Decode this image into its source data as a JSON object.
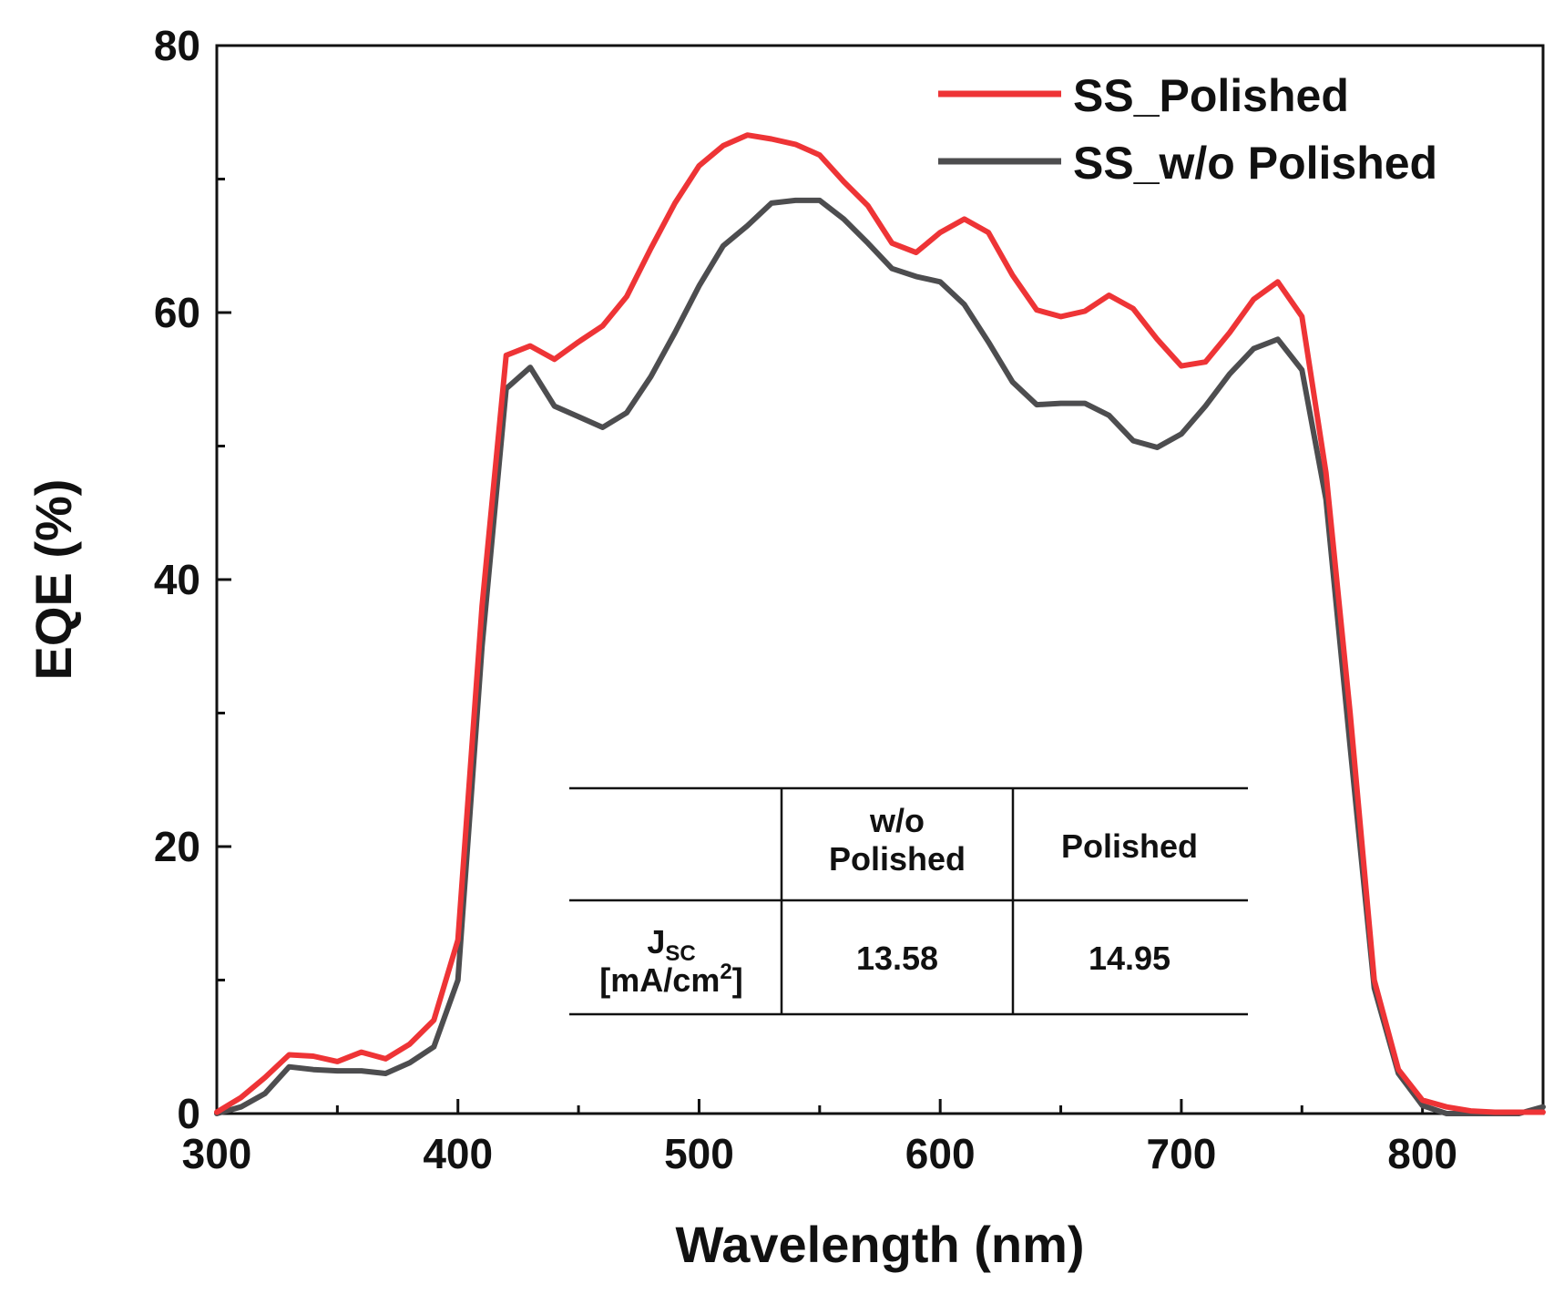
{
  "chart_data": {
    "type": "line",
    "xlabel": "Wavelength (nm)",
    "ylabel": "EQE (%)",
    "xlim": [
      300,
      850
    ],
    "ylim": [
      0,
      80
    ],
    "x_ticks": [
      300,
      400,
      500,
      600,
      700,
      800
    ],
    "y_ticks": [
      0,
      20,
      40,
      60,
      80
    ],
    "legend_position": "top-right",
    "x": [
      300,
      310,
      320,
      330,
      340,
      350,
      360,
      370,
      380,
      390,
      400,
      410,
      420,
      430,
      440,
      450,
      460,
      470,
      480,
      490,
      500,
      510,
      520,
      530,
      540,
      550,
      560,
      570,
      580,
      590,
      600,
      610,
      620,
      630,
      640,
      650,
      660,
      670,
      680,
      690,
      700,
      710,
      720,
      730,
      740,
      750,
      760,
      770,
      780,
      790,
      800,
      810,
      820,
      830,
      840,
      850
    ],
    "series": [
      {
        "name": "SS_Polished",
        "color": "#ee3436",
        "values": [
          0.1,
          1.2,
          2.7,
          4.4,
          4.3,
          3.9,
          4.6,
          4.1,
          5.2,
          7.0,
          13.0,
          38.0,
          56.8,
          57.5,
          56.5,
          57.8,
          59.0,
          61.2,
          64.8,
          68.2,
          71.0,
          72.5,
          73.3,
          73.0,
          72.6,
          71.8,
          69.8,
          68.0,
          65.2,
          64.5,
          66.0,
          67.0,
          66.0,
          62.8,
          60.2,
          59.7,
          60.1,
          61.3,
          60.3,
          58.0,
          56.0,
          56.3,
          58.5,
          61.0,
          62.3,
          59.7,
          48.0,
          30.0,
          10.0,
          3.3,
          1.0,
          0.5,
          0.2,
          0.1,
          0.1,
          0.1
        ],
        "line_width": 6
      },
      {
        "name": "SS_w/o Polished",
        "color": "#4d4d4f",
        "values": [
          0.0,
          0.5,
          1.5,
          3.5,
          3.3,
          3.2,
          3.2,
          3.0,
          3.8,
          5.0,
          10.0,
          35.0,
          54.3,
          55.9,
          53.0,
          52.2,
          51.4,
          52.5,
          55.2,
          58.5,
          62.0,
          65.0,
          66.5,
          68.2,
          68.4,
          68.4,
          67.0,
          65.2,
          63.3,
          62.7,
          62.3,
          60.6,
          57.8,
          54.8,
          53.1,
          53.2,
          53.2,
          52.3,
          50.4,
          49.9,
          50.9,
          53.0,
          55.4,
          57.3,
          58.0,
          55.7,
          46.0,
          27.5,
          9.4,
          3.0,
          0.6,
          0.0,
          0.0,
          0.0,
          0.0,
          0.5
        ],
        "line_width": 6
      }
    ],
    "inset_table": {
      "header": [
        "",
        "w/o\nPolished",
        "Polished"
      ],
      "row_label": "Jsc [mA/cm2]",
      "row_label_main": "J",
      "row_label_sub": "SC",
      "row_label_unit_pre": "[mA/cm",
      "row_label_unit_sup": "2",
      "row_label_unit_post": "]",
      "values": [
        "13.58",
        "14.95"
      ]
    }
  }
}
